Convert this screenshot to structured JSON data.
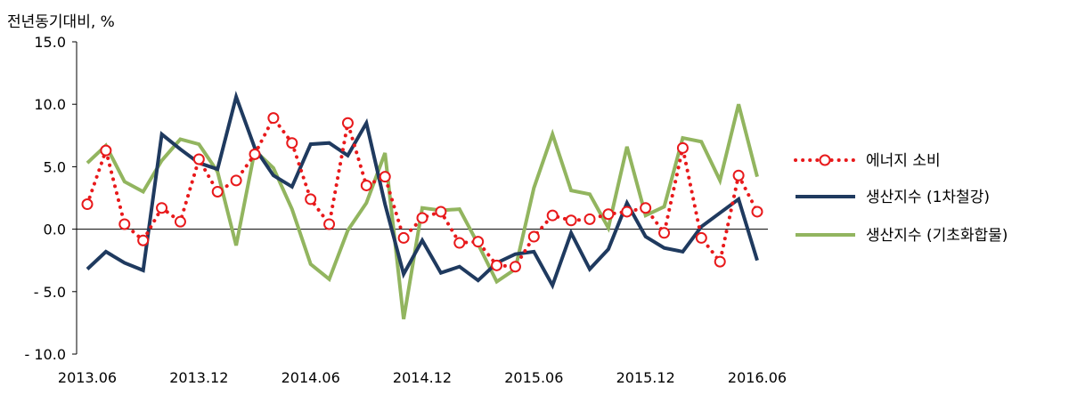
{
  "chart_data": {
    "type": "line",
    "ylabel": "전년동기대비, %",
    "ylim": [
      -10,
      15
    ],
    "y_ticks": [
      {
        "v": 15,
        "label": "15.0"
      },
      {
        "v": 10,
        "label": "10.0"
      },
      {
        "v": 5,
        "label": "5.0"
      },
      {
        "v": 0,
        "label": "0.0"
      },
      {
        "v": -5,
        "label": "- 5.0"
      },
      {
        "v": -10,
        "label": "- 10.0"
      }
    ],
    "x": [
      "2013.06",
      "2013.07",
      "2013.08",
      "2013.09",
      "2013.10",
      "2013.11",
      "2013.12",
      "2014.01",
      "2014.02",
      "2014.03",
      "2014.04",
      "2014.05",
      "2014.06",
      "2014.07",
      "2014.08",
      "2014.09",
      "2014.10",
      "2014.11",
      "2014.12",
      "2015.01",
      "2015.02",
      "2015.03",
      "2015.04",
      "2015.05",
      "2015.06",
      "2015.07",
      "2015.08",
      "2015.09",
      "2015.10",
      "2015.11",
      "2015.12",
      "2016.01",
      "2016.02",
      "2016.03",
      "2016.04",
      "2016.05",
      "2016.06"
    ],
    "x_tick_labels": [
      {
        "i": 0,
        "label": "2013.06"
      },
      {
        "i": 6,
        "label": "2013.12"
      },
      {
        "i": 12,
        "label": "2014.06"
      },
      {
        "i": 18,
        "label": "2014.12"
      },
      {
        "i": 24,
        "label": "2015.06"
      },
      {
        "i": 30,
        "label": "2015.12"
      },
      {
        "i": 36,
        "label": "2016.06"
      }
    ],
    "legend_position": "right",
    "series": [
      {
        "name": "에너지 소비",
        "style": "dotted-circle",
        "color": "#e8191b",
        "values": [
          2.0,
          6.3,
          0.4,
          -0.9,
          1.7,
          0.6,
          5.6,
          3.0,
          3.9,
          6.0,
          8.9,
          6.9,
          2.4,
          0.4,
          8.5,
          3.5,
          4.2,
          -0.7,
          0.9,
          1.4,
          -1.1,
          -1.0,
          -2.9,
          -3.0,
          -0.6,
          1.1,
          0.7,
          0.8,
          1.2,
          1.4,
          1.7,
          -0.3,
          6.5,
          -0.7,
          -2.6,
          4.3,
          1.4
        ]
      },
      {
        "name": "생산지수 (1차철강)",
        "style": "solid",
        "color": "#1f3a5f",
        "values": [
          -3.2,
          -1.8,
          -2.7,
          -3.3,
          7.6,
          6.4,
          5.3,
          4.8,
          10.6,
          6.5,
          4.3,
          3.4,
          6.8,
          6.9,
          5.9,
          8.5,
          2.0,
          -3.6,
          -0.9,
          -3.5,
          -3.0,
          -4.1,
          -2.7,
          -2.0,
          -1.8,
          -4.5,
          -0.3,
          -3.2,
          -1.6,
          2.1,
          -0.6,
          -1.5,
          -1.8,
          0.2,
          1.3,
          2.4,
          -2.5
        ]
      },
      {
        "name": "생산지수 (기초화합물)",
        "style": "solid",
        "color": "#92b55f",
        "values": [
          5.3,
          6.7,
          3.8,
          3.0,
          5.5,
          7.2,
          6.8,
          4.6,
          -1.3,
          6.3,
          4.9,
          1.6,
          -2.8,
          -4.0,
          -0.1,
          2.1,
          6.1,
          -7.2,
          1.7,
          1.5,
          1.6,
          -1.2,
          -4.2,
          -3.2,
          3.3,
          7.6,
          3.1,
          2.8,
          0.1,
          6.6,
          1.1,
          1.8,
          7.3,
          7.0,
          3.9,
          10.0,
          4.2
        ]
      }
    ]
  }
}
